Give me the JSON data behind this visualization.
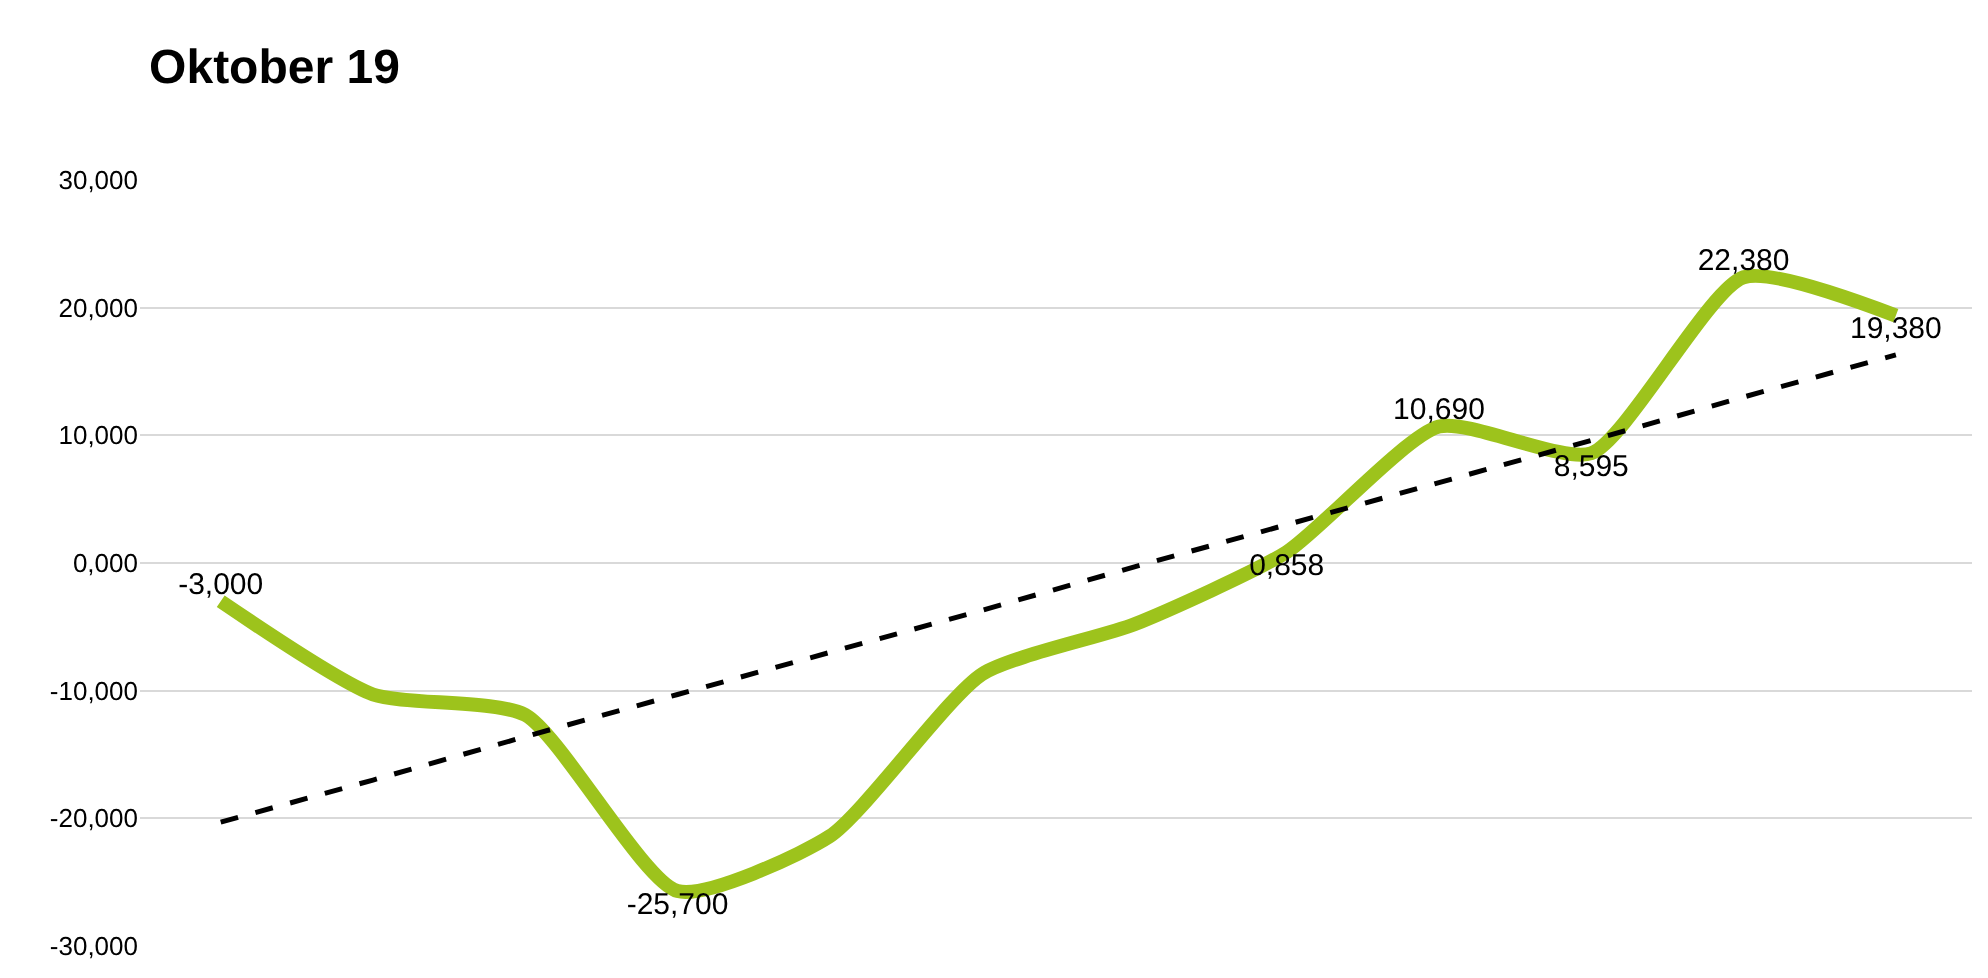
{
  "chart_data": {
    "type": "line",
    "title": "Oktober 19",
    "categories": [
      null,
      null,
      null,
      null,
      null,
      null,
      null,
      null,
      null,
      null,
      null,
      null
    ],
    "series": [
      {
        "color": "#9dc31c",
        "values": [
          -3.0,
          -10.3,
          -11.9,
          -25.7,
          -21.4,
          -8.7,
          -4.8,
          0.858,
          10.69,
          8.595,
          22.38,
          19.38
        ],
        "value_labels": [
          "-3,000",
          null,
          null,
          "-25,700",
          null,
          null,
          null,
          "0,858",
          "10,690",
          "8,595",
          "22,380",
          "19,380"
        ]
      },
      {
        "color": "#000000",
        "line_style": "dashed",
        "values": [
          -20.3,
          -17.0,
          -13.6,
          -10.3,
          -7.0,
          -3.7,
          -0.3,
          3.0,
          6.3,
          9.6,
          13.0,
          16.3
        ]
      }
    ],
    "ylim": [
      -30,
      30
    ],
    "yticks": [
      {
        "value": -30,
        "label": "-30,000"
      },
      {
        "value": -20,
        "label": "-20,000"
      },
      {
        "value": -10,
        "label": "-10,000"
      },
      {
        "value": 0,
        "label": "0,000"
      },
      {
        "value": 10,
        "label": "10,000"
      },
      {
        "value": 20,
        "label": "20,000"
      },
      {
        "value": 30,
        "label": "30,000"
      }
    ],
    "grid": "y",
    "tick_labels": "y"
  }
}
